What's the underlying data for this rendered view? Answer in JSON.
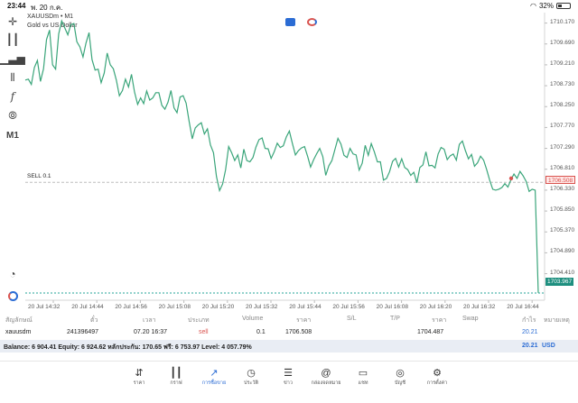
{
  "status": {
    "time": "23:44",
    "date": "พ. 20 ก.ค.",
    "battery": "32%"
  },
  "chart": {
    "symbol": "XAUUSDm • M1",
    "description": "Gold vs US Dollar",
    "trade_tag": "SELL 0.1",
    "price_axis": [
      "1710.170",
      "1709.690",
      "1709.210",
      "1708.730",
      "1708.250",
      "1707.770",
      "1707.290",
      "1706.810",
      "1706.330",
      "1705.850",
      "1705.370",
      "1704.890",
      "1704.410"
    ],
    "sell_price_label": "1706.508",
    "current_price_label": "1703.967",
    "time_axis": [
      "20 Jul 14:32",
      "20 Jul 14:44",
      "20 Jul 14:56",
      "20 Jul 15:08",
      "20 Jul 15:20",
      "20 Jul 15:32",
      "20 Jul 15:44",
      "20 Jul 15:56",
      "20 Jul 16:08",
      "20 Jul 16:20",
      "20 Jul 16:32",
      "20 Jul 16:44"
    ],
    "colors": {
      "line": "#3aa57a",
      "sell": "#d9534f",
      "current": "#26a69a"
    }
  },
  "chart_data": {
    "type": "line",
    "x": [
      0,
      1,
      2,
      3,
      4,
      5,
      6,
      7,
      8,
      9,
      10,
      11,
      12,
      13,
      14,
      15,
      16,
      17,
      18,
      19,
      20,
      21,
      22,
      23,
      24,
      25,
      26,
      27,
      28,
      29,
      30,
      31,
      32,
      33,
      34,
      35,
      36,
      37,
      38,
      39,
      40,
      41,
      42,
      43,
      44,
      45,
      46,
      47,
      48,
      49,
      50,
      51,
      52,
      53,
      54,
      55,
      56,
      57,
      58,
      59,
      60,
      61,
      62,
      63,
      64,
      65,
      66,
      67,
      68,
      69,
      70,
      71,
      72,
      73,
      74,
      75,
      76,
      77,
      78,
      79,
      80,
      81,
      82,
      83,
      84,
      85,
      86,
      87,
      88,
      89,
      90,
      91,
      92,
      93,
      94,
      95,
      96,
      97,
      98,
      99,
      100,
      101,
      102,
      103,
      104,
      105,
      106,
      107,
      108,
      109,
      110,
      111,
      112,
      113,
      114,
      115,
      116,
      117,
      118,
      119,
      120,
      121,
      122,
      123,
      124,
      125,
      126,
      127,
      128,
      129,
      130,
      131,
      132,
      133,
      134,
      135,
      136,
      137,
      138,
      139,
      140,
      141,
      142,
      143,
      144,
      145,
      146,
      147,
      148,
      149,
      150,
      151,
      152,
      153,
      154,
      155,
      156,
      157,
      158,
      159,
      160,
      161,
      162,
      163,
      164,
      165,
      166,
      167,
      168,
      169
    ],
    "values": [
      1708.86,
      1708.88,
      1708.76,
      1709.15,
      1709.31,
      1708.83,
      1709.12,
      1709.79,
      1710.01,
      1709.21,
      1709.11,
      1709.92,
      1710.22,
      1710.06,
      1709.9,
      1710.13,
      1710.16,
      1709.74,
      1709.62,
      1709.39,
      1709.71,
      1709.95,
      1709.33,
      1709.09,
      1709.11,
      1708.8,
      1709.02,
      1709.48,
      1709.21,
      1709.12,
      1708.86,
      1708.5,
      1708.62,
      1708.88,
      1708.7,
      1708.99,
      1708.58,
      1708.3,
      1708.45,
      1708.32,
      1708.61,
      1708.4,
      1708.45,
      1708.57,
      1708.57,
      1708.28,
      1708.19,
      1708.35,
      1708.62,
      1708.22,
      1708.11,
      1708.47,
      1708.5,
      1708.33,
      1707.9,
      1707.51,
      1707.76,
      1707.83,
      1707.88,
      1707.62,
      1707.74,
      1707.37,
      1707.19,
      1706.64,
      1706.32,
      1706.47,
      1706.8,
      1707.33,
      1707.19,
      1707.01,
      1707.14,
      1706.84,
      1707.27,
      1707.01,
      1706.98,
      1707.08,
      1707.32,
      1707.49,
      1707.53,
      1707.29,
      1707.28,
      1707.06,
      1707.21,
      1707.41,
      1707.31,
      1707.35,
      1707.55,
      1707.69,
      1707.4,
      1707.14,
      1707.24,
      1707.3,
      1707.33,
      1707.11,
      1706.86,
      1707.03,
      1707.17,
      1707.29,
      1707.1,
      1706.67,
      1706.89,
      1707.01,
      1707.26,
      1707.52,
      1707.39,
      1707.13,
      1707.08,
      1707.29,
      1707.16,
      1707.14,
      1706.79,
      1706.95,
      1707.36,
      1707.13,
      1707.4,
      1707.21,
      1706.98,
      1706.98,
      1706.56,
      1706.6,
      1706.75,
      1706.99,
      1707.06,
      1706.86,
      1707.05,
      1706.85,
      1706.8,
      1706.67,
      1706.74,
      1706.5,
      1706.85,
      1706.91,
      1707.21,
      1706.89,
      1706.9,
      1706.84,
      1707.16,
      1707.31,
      1707.27,
      1707.03,
      1707.12,
      1707.16,
      1707.02,
      1707.38,
      1707.46,
      1707.24,
      1707.05,
      1707.15,
      1706.88,
      1706.96,
      1707.11,
      1707.02,
      1706.8,
      1706.56,
      1706.35,
      1706.33,
      1706.35,
      1706.39,
      1706.48,
      1706.4,
      1706.57,
      1706.7,
      1706.6,
      1706.76,
      1706.66,
      1706.53,
      1706.3,
      1706.35,
      1706.33,
      1703.97
    ],
    "ylim": [
      1703.9,
      1710.5
    ]
  },
  "table": {
    "headers": [
      "สัญลักษณ์",
      "ตั๋ว",
      "เวลา",
      "ประเภท",
      "Volume",
      "ราคา",
      "S/L",
      "T/P",
      "ราคา",
      "Swap",
      "กำไร",
      "หมายเหตุ"
    ],
    "row": [
      "xauusdm",
      "241396497",
      "07.20 16:37",
      "sell",
      "0.1",
      "1706.508",
      "",
      "",
      "1704.487",
      "",
      "20.21",
      ""
    ],
    "balance": "Balance: 6 904.41  Equity: 6 924.62  หลักประกัน: 170.65  ฟรี: 6 753.97  Level: 4 057.79%",
    "total_profit": "20.21",
    "currency": "USD"
  },
  "tabs": [
    {
      "label": "ราคา",
      "icon": "quotes-icon"
    },
    {
      "label": "กราฟ",
      "icon": "chart-icon"
    },
    {
      "label": "การซื้อขาย",
      "icon": "trade-icon"
    },
    {
      "label": "ประวัติ",
      "icon": "history-icon"
    },
    {
      "label": "ข่าว",
      "icon": "news-icon"
    },
    {
      "label": "กล่องจดหมาย",
      "icon": "mailbox-icon"
    },
    {
      "label": "แชท",
      "icon": "chat-icon"
    },
    {
      "label": "บัญชี",
      "icon": "account-icon"
    },
    {
      "label": "การตั้งค่า",
      "icon": "settings-icon"
    }
  ]
}
